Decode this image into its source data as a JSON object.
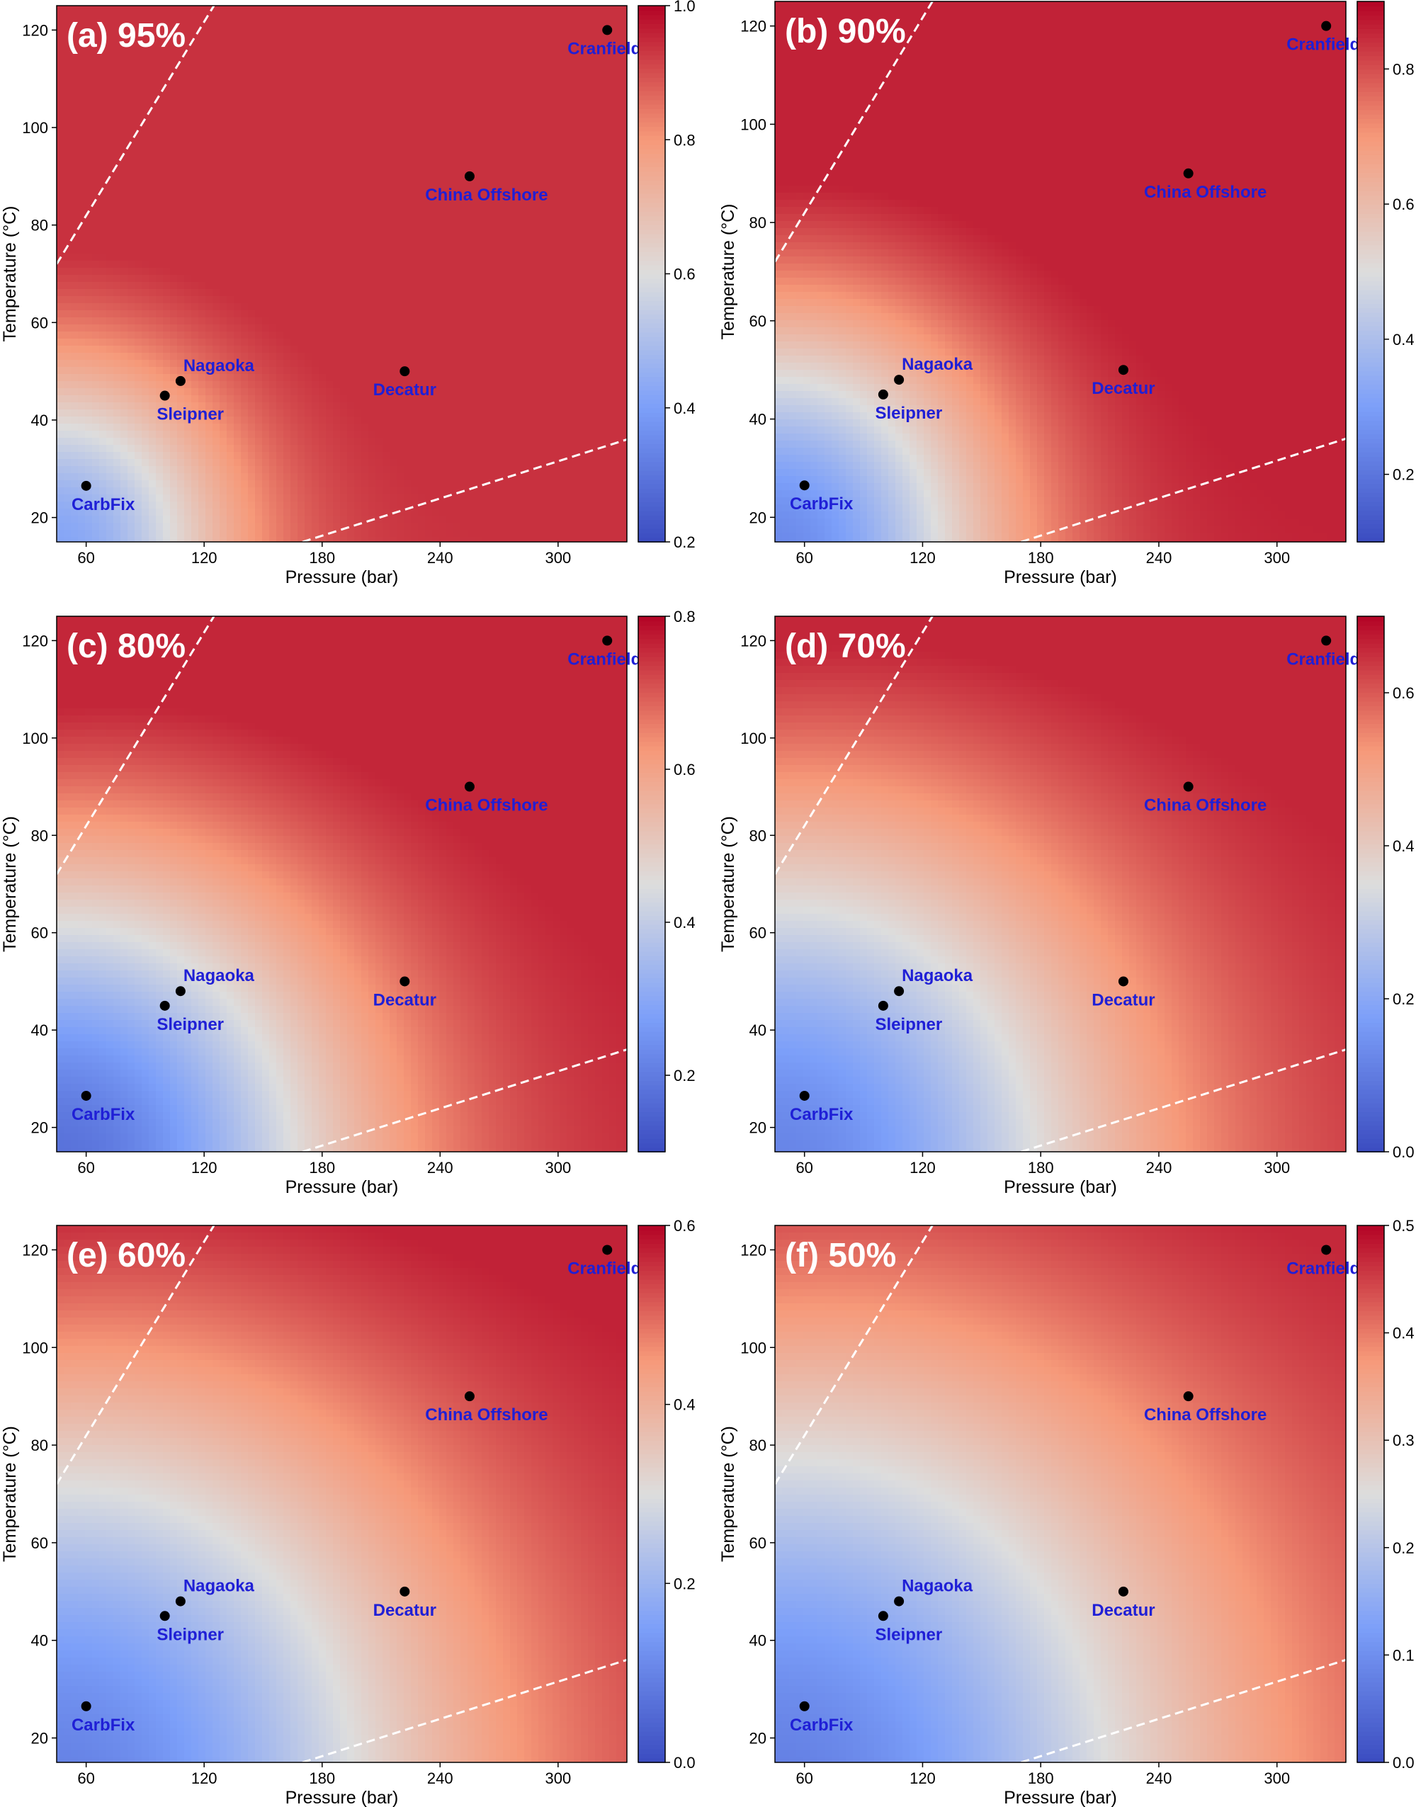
{
  "figure": {
    "layout": "3 rows x 2 columns of heatmap panels"
  },
  "chart_data": [
    {
      "type": "heatmap",
      "title": "(a) 95%",
      "xlabel": "Pressure (bar)",
      "ylabel": "Temperature (°C)",
      "xlim": [
        45,
        335
      ],
      "ylim": [
        15,
        125
      ],
      "xticks": [
        60,
        120,
        180,
        240,
        300
      ],
      "yticks": [
        20,
        40,
        60,
        80,
        100,
        120
      ],
      "colorbar": {
        "cmap": "coolwarm",
        "min": 0.2,
        "max": 1.0,
        "ticks": [
          0.2,
          0.4,
          0.6,
          0.8,
          1.0
        ],
        "tick_labels": [
          "0.2",
          "0.4",
          "0.6",
          "0.8",
          "1.0"
        ]
      },
      "field": {
        "low": 0.42,
        "high": 0.94,
        "radius": 0.35
      },
      "sites": [
        {
          "name": "Cranfield",
          "pressure": 325,
          "temperature": 120
        },
        {
          "name": "China Offshore",
          "pressure": 255,
          "temperature": 90
        },
        {
          "name": "Decatur",
          "pressure": 222,
          "temperature": 50
        },
        {
          "name": "Nagaoka",
          "pressure": 108,
          "temperature": 48
        },
        {
          "name": "Sleipner",
          "pressure": 100,
          "temperature": 45
        },
        {
          "name": "CarbFix",
          "pressure": 60,
          "temperature": 26.5
        }
      ],
      "boundaries": [
        {
          "style": "white dashed",
          "from": [
            45,
            72
          ],
          "to": [
            125,
            125
          ]
        },
        {
          "style": "white dashed",
          "from": [
            170,
            15
          ],
          "to": [
            335,
            36
          ]
        }
      ]
    },
    {
      "type": "heatmap",
      "title": "(b) 90%",
      "xlabel": "Pressure (bar)",
      "ylabel": "Temperature (°C)",
      "xlim": [
        45,
        335
      ],
      "ylim": [
        15,
        125
      ],
      "xticks": [
        60,
        120,
        180,
        240,
        300
      ],
      "yticks": [
        20,
        40,
        60,
        80,
        100,
        120
      ],
      "colorbar": {
        "cmap": "coolwarm",
        "min": 0.1,
        "max": 0.9,
        "ticks": [
          0.2,
          0.4,
          0.6,
          0.8
        ],
        "tick_labels": [
          "0.2",
          "0.4",
          "0.6",
          "0.8"
        ]
      },
      "field": {
        "low": 0.25,
        "high": 0.86,
        "radius": 0.45
      },
      "sites": [
        {
          "name": "Cranfield",
          "pressure": 325,
          "temperature": 120
        },
        {
          "name": "China Offshore",
          "pressure": 255,
          "temperature": 90
        },
        {
          "name": "Decatur",
          "pressure": 222,
          "temperature": 50
        },
        {
          "name": "Nagaoka",
          "pressure": 108,
          "temperature": 48
        },
        {
          "name": "Sleipner",
          "pressure": 100,
          "temperature": 45
        },
        {
          "name": "CarbFix",
          "pressure": 60,
          "temperature": 26.5
        }
      ],
      "boundaries": [
        {
          "style": "white dashed",
          "from": [
            45,
            72
          ],
          "to": [
            125,
            125
          ]
        },
        {
          "style": "white dashed",
          "from": [
            170,
            15
          ],
          "to": [
            335,
            36
          ]
        }
      ]
    },
    {
      "type": "heatmap",
      "title": "(c) 80%",
      "xlabel": "Pressure (bar)",
      "ylabel": "Temperature (°C)",
      "xlim": [
        45,
        335
      ],
      "ylim": [
        15,
        125
      ],
      "xticks": [
        60,
        120,
        180,
        240,
        300
      ],
      "yticks": [
        20,
        40,
        60,
        80,
        100,
        120
      ],
      "colorbar": {
        "cmap": "coolwarm",
        "min": 0.1,
        "max": 0.8,
        "ticks": [
          0.2,
          0.4,
          0.6,
          0.8
        ],
        "tick_labels": [
          "0.2",
          "0.4",
          "0.6",
          "0.8"
        ]
      },
      "field": {
        "low": 0.18,
        "high": 0.76,
        "radius": 0.6
      },
      "sites": [
        {
          "name": "Cranfield",
          "pressure": 325,
          "temperature": 120
        },
        {
          "name": "China Offshore",
          "pressure": 255,
          "temperature": 90
        },
        {
          "name": "Decatur",
          "pressure": 222,
          "temperature": 50
        },
        {
          "name": "Nagaoka",
          "pressure": 108,
          "temperature": 48
        },
        {
          "name": "Sleipner",
          "pressure": 100,
          "temperature": 45
        },
        {
          "name": "CarbFix",
          "pressure": 60,
          "temperature": 26.5
        }
      ],
      "boundaries": [
        {
          "style": "white dashed",
          "from": [
            45,
            72
          ],
          "to": [
            125,
            125
          ]
        },
        {
          "style": "white dashed",
          "from": [
            170,
            15
          ],
          "to": [
            335,
            36
          ]
        }
      ]
    },
    {
      "type": "heatmap",
      "title": "(d) 70%",
      "xlabel": "Pressure (bar)",
      "ylabel": "Temperature (°C)",
      "xlim": [
        45,
        335
      ],
      "ylim": [
        15,
        125
      ],
      "xticks": [
        60,
        120,
        180,
        240,
        300
      ],
      "yticks": [
        20,
        40,
        60,
        80,
        100,
        120
      ],
      "colorbar": {
        "cmap": "coolwarm",
        "min": 0.0,
        "max": 0.7,
        "ticks": [
          0.0,
          0.2,
          0.4,
          0.6
        ],
        "tick_labels": [
          "0.0",
          "0.2",
          "0.4",
          "0.6"
        ]
      },
      "field": {
        "low": 0.12,
        "high": 0.66,
        "radius": 0.7
      },
      "sites": [
        {
          "name": "Cranfield",
          "pressure": 325,
          "temperature": 120
        },
        {
          "name": "China Offshore",
          "pressure": 255,
          "temperature": 90
        },
        {
          "name": "Decatur",
          "pressure": 222,
          "temperature": 50
        },
        {
          "name": "Nagaoka",
          "pressure": 108,
          "temperature": 48
        },
        {
          "name": "Sleipner",
          "pressure": 100,
          "temperature": 45
        },
        {
          "name": "CarbFix",
          "pressure": 60,
          "temperature": 26.5
        }
      ],
      "boundaries": [
        {
          "style": "white dashed",
          "from": [
            45,
            72
          ],
          "to": [
            125,
            125
          ]
        },
        {
          "style": "white dashed",
          "from": [
            170,
            15
          ],
          "to": [
            335,
            36
          ]
        }
      ]
    },
    {
      "type": "heatmap",
      "title": "(e) 60%",
      "xlabel": "Pressure (bar)",
      "ylabel": "Temperature (°C)",
      "xlim": [
        45,
        335
      ],
      "ylim": [
        15,
        125
      ],
      "xticks": [
        60,
        120,
        180,
        240,
        300
      ],
      "yticks": [
        20,
        40,
        60,
        80,
        100,
        120
      ],
      "colorbar": {
        "cmap": "coolwarm",
        "min": 0.0,
        "max": 0.6,
        "ticks": [
          0.0,
          0.2,
          0.4,
          0.6
        ],
        "tick_labels": [
          "0.0",
          "0.2",
          "0.4",
          "0.6"
        ]
      },
      "field": {
        "low": 0.1,
        "high": 0.57,
        "radius": 0.8
      },
      "sites": [
        {
          "name": "Cranfield",
          "pressure": 325,
          "temperature": 120
        },
        {
          "name": "China Offshore",
          "pressure": 255,
          "temperature": 90
        },
        {
          "name": "Decatur",
          "pressure": 222,
          "temperature": 50
        },
        {
          "name": "Nagaoka",
          "pressure": 108,
          "temperature": 48
        },
        {
          "name": "Sleipner",
          "pressure": 100,
          "temperature": 45
        },
        {
          "name": "CarbFix",
          "pressure": 60,
          "temperature": 26.5
        }
      ],
      "boundaries": [
        {
          "style": "white dashed",
          "from": [
            45,
            72
          ],
          "to": [
            125,
            125
          ]
        },
        {
          "style": "white dashed",
          "from": [
            170,
            15
          ],
          "to": [
            335,
            36
          ]
        }
      ]
    },
    {
      "type": "heatmap",
      "title": "(f) 50%",
      "xlabel": "Pressure (bar)",
      "ylabel": "Temperature (°C)",
      "xlim": [
        45,
        335
      ],
      "ylim": [
        15,
        125
      ],
      "xticks": [
        60,
        120,
        180,
        240,
        300
      ],
      "yticks": [
        20,
        40,
        60,
        80,
        100,
        120
      ],
      "colorbar": {
        "cmap": "coolwarm",
        "min": 0.0,
        "max": 0.5,
        "ticks": [
          0.0,
          0.1,
          0.2,
          0.3,
          0.4,
          0.5
        ],
        "tick_labels": [
          "0.0",
          "0.1",
          "0.2",
          "0.3",
          "0.4",
          "0.5"
        ]
      },
      "field": {
        "low": 0.08,
        "high": 0.47,
        "radius": 0.88
      },
      "sites": [
        {
          "name": "Cranfield",
          "pressure": 325,
          "temperature": 120
        },
        {
          "name": "China Offshore",
          "pressure": 255,
          "temperature": 90
        },
        {
          "name": "Decatur",
          "pressure": 222,
          "temperature": 50
        },
        {
          "name": "Nagaoka",
          "pressure": 108,
          "temperature": 48
        },
        {
          "name": "Sleipner",
          "pressure": 100,
          "temperature": 45
        },
        {
          "name": "CarbFix",
          "pressure": 60,
          "temperature": 26.5
        }
      ],
      "boundaries": [
        {
          "style": "white dashed",
          "from": [
            45,
            72
          ],
          "to": [
            125,
            125
          ]
        },
        {
          "style": "white dashed",
          "from": [
            170,
            15
          ],
          "to": [
            335,
            36
          ]
        }
      ]
    }
  ]
}
